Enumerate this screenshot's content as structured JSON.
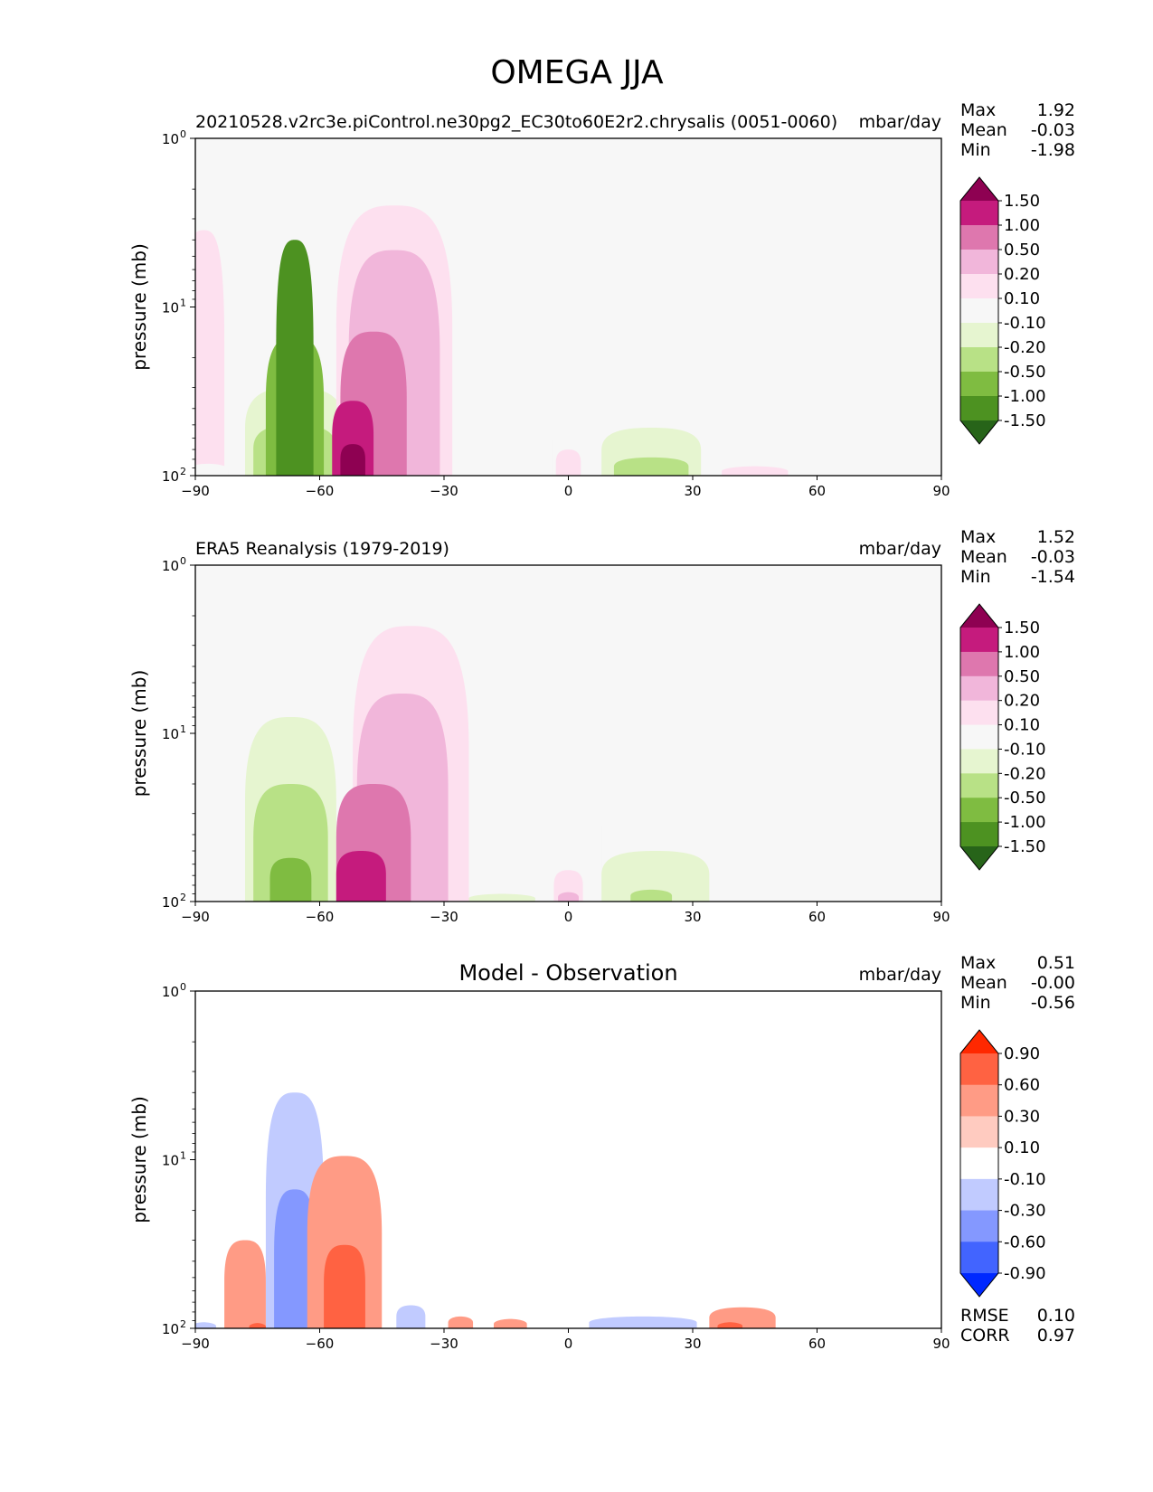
{
  "figure": {
    "title": "OMEGA JJA"
  },
  "chart_data": [
    {
      "type": "heatmap",
      "title": "20210528.v2rc3e.piControl.ne30pg2_EC30to60E2r2.chrysalis (0051-0060)",
      "units": "mbar/day",
      "ylabel": "pressure (mb)",
      "xlim": [
        -90,
        90
      ],
      "ylim": [
        100,
        1
      ],
      "yscale": "log",
      "xticks": [
        "−90",
        "−60",
        "−30",
        "0",
        "30",
        "60",
        "90"
      ],
      "yticks": [
        "10",
        "10",
        "10"
      ],
      "ytick_exp": [
        "0",
        "1",
        "2"
      ],
      "stats": [
        {
          "label": "Max",
          "value": "1.92"
        },
        {
          "label": "Mean",
          "value": "-0.03"
        },
        {
          "label": "Min",
          "value": "-1.98"
        }
      ],
      "colorbar": {
        "levels": [
          "1.50",
          "1.00",
          "0.50",
          "0.20",
          "0.10",
          "-0.10",
          "-0.20",
          "-0.50",
          "-1.00",
          "-1.50"
        ],
        "colors": [
          "#8e0152",
          "#c51b7d",
          "#de77ae",
          "#f1b6da",
          "#fde0ef",
          "#f7f7f7",
          "#e6f5d0",
          "#b8e186",
          "#7fbc41",
          "#4d9221",
          "#276419"
        ]
      },
      "features": [
        {
          "x": -66,
          "top_p": 30,
          "halfwidth": 12,
          "value": -0.2
        },
        {
          "x": -66,
          "top_p": 50,
          "halfwidth": 10,
          "value": -0.5
        },
        {
          "x": -66,
          "top_p": 15,
          "halfwidth": 7,
          "value": -1.0
        },
        {
          "x": -66,
          "top_p": 4,
          "halfwidth": 4.5,
          "value": -1.5
        },
        {
          "x": -42,
          "top_p": 2.5,
          "halfwidth": 14,
          "value": 0.1
        },
        {
          "x": -42,
          "top_p": 4.6,
          "halfwidth": 11,
          "value": 0.2
        },
        {
          "x": -47,
          "top_p": 14,
          "halfwidth": 8,
          "value": 0.5
        },
        {
          "x": -52,
          "top_p": 36,
          "halfwidth": 5,
          "value": 1.0
        },
        {
          "x": -52,
          "top_p": 65,
          "halfwidth": 3,
          "value": 1.5
        },
        {
          "x": 23,
          "top_p": 17,
          "halfwidth": 13,
          "value": -0.1
        },
        {
          "x": 20,
          "top_p": 52,
          "halfwidth": 12,
          "value": -0.2
        },
        {
          "x": 20,
          "top_p": 78,
          "halfwidth": 9,
          "value": -0.5
        },
        {
          "x": -12,
          "top_p": 40,
          "halfwidth": 8,
          "value": -0.1
        },
        {
          "x": 0,
          "top_p": 70,
          "halfwidth": 3,
          "value": 0.1
        },
        {
          "x": -88,
          "top_p": 3.5,
          "halfwidth": 5,
          "value": 0.1
        },
        {
          "x": 45,
          "top_p": 88,
          "halfwidth": 8,
          "value": 0.1
        },
        {
          "x": -87,
          "top_p": 85,
          "halfwidth": 5,
          "value": -0.1
        }
      ]
    },
    {
      "type": "heatmap",
      "title": "ERA5 Reanalysis (1979-2019)",
      "units": "mbar/day",
      "ylabel": "pressure (mb)",
      "xlim": [
        -90,
        90
      ],
      "ylim": [
        100,
        1
      ],
      "yscale": "log",
      "xticks": [
        "−90",
        "−60",
        "−30",
        "0",
        "30",
        "60",
        "90"
      ],
      "yticks": [
        "10",
        "10",
        "10"
      ],
      "ytick_exp": [
        "0",
        "1",
        "2"
      ],
      "stats": [
        {
          "label": "Max",
          "value": "1.52"
        },
        {
          "label": "Mean",
          "value": "-0.03"
        },
        {
          "label": "Min",
          "value": "-1.54"
        }
      ],
      "colorbar": {
        "levels": [
          "1.50",
          "1.00",
          "0.50",
          "0.20",
          "0.10",
          "-0.10",
          "-0.20",
          "-0.50",
          "-1.00",
          "-1.50"
        ],
        "colors": [
          "#8e0152",
          "#c51b7d",
          "#de77ae",
          "#f1b6da",
          "#fde0ef",
          "#f7f7f7",
          "#e6f5d0",
          "#b8e186",
          "#7fbc41",
          "#4d9221",
          "#276419"
        ]
      },
      "features": [
        {
          "x": -68,
          "top_p": 5,
          "halfwidth": 15,
          "value": -0.1
        },
        {
          "x": -67,
          "top_p": 8,
          "halfwidth": 11,
          "value": -0.2
        },
        {
          "x": -67,
          "top_p": 20,
          "halfwidth": 9,
          "value": -0.5
        },
        {
          "x": -67,
          "top_p": 55,
          "halfwidth": 5,
          "value": -1.0
        },
        {
          "x": -38,
          "top_p": 2.3,
          "halfwidth": 14,
          "value": 0.1
        },
        {
          "x": -40,
          "top_p": 5.8,
          "halfwidth": 11,
          "value": 0.2
        },
        {
          "x": -47,
          "top_p": 20,
          "halfwidth": 9,
          "value": 0.5
        },
        {
          "x": -50,
          "top_p": 50,
          "halfwidth": 6,
          "value": 1.0
        },
        {
          "x": 25,
          "top_p": 15,
          "halfwidth": 17,
          "value": -0.1
        },
        {
          "x": 21,
          "top_p": 50,
          "halfwidth": 13,
          "value": -0.2
        },
        {
          "x": 20,
          "top_p": 85,
          "halfwidth": 5,
          "value": -0.5
        },
        {
          "x": -10,
          "top_p": 35,
          "halfwidth": 7,
          "value": -0.1
        },
        {
          "x": -16,
          "top_p": 90,
          "halfwidth": 8,
          "value": -0.2
        },
        {
          "x": 0,
          "top_p": 65,
          "halfwidth": 3.5,
          "value": 0.1
        },
        {
          "x": 0,
          "top_p": 88,
          "halfwidth": 2.5,
          "value": 0.2
        },
        {
          "x": -86,
          "top_p": 55,
          "halfwidth": 6,
          "value": -0.1
        }
      ]
    },
    {
      "type": "heatmap",
      "title": "Model - Observation",
      "units": "mbar/day",
      "ylabel": "pressure (mb)",
      "xlim": [
        -90,
        90
      ],
      "ylim": [
        100,
        1
      ],
      "yscale": "log",
      "xticks": [
        "−90",
        "−60",
        "−30",
        "0",
        "30",
        "60",
        "90"
      ],
      "yticks": [
        "10",
        "10",
        "10"
      ],
      "ytick_exp": [
        "0",
        "1",
        "2"
      ],
      "stats": [
        {
          "label": "Max",
          "value": "0.51"
        },
        {
          "label": "Mean",
          "value": "-0.00"
        },
        {
          "label": "Min",
          "value": "-0.56"
        }
      ],
      "extra_stats": [
        {
          "label": "RMSE",
          "value": "0.10"
        },
        {
          "label": "CORR",
          "value": "0.97"
        }
      ],
      "colorbar": {
        "levels": [
          "0.90",
          "0.60",
          "0.30",
          "0.10",
          "-0.10",
          "-0.30",
          "-0.60",
          "-0.90"
        ],
        "colors": [
          "#ff2800",
          "#ff6242",
          "#ff9b85",
          "#ffcbc0",
          "#ffffff",
          "#c1cbff",
          "#8498ff",
          "#4264ff",
          "#0028ff"
        ]
      },
      "features": [
        {
          "x": -66,
          "top_p": 4,
          "halfwidth": 7,
          "value": -0.3
        },
        {
          "x": -66,
          "top_p": 15,
          "halfwidth": 5,
          "value": -0.6
        },
        {
          "x": -54,
          "top_p": 9.5,
          "halfwidth": 9,
          "value": 0.3
        },
        {
          "x": -54,
          "top_p": 32,
          "halfwidth": 5,
          "value": 0.6
        },
        {
          "x": -78,
          "top_p": 30,
          "halfwidth": 5,
          "value": 0.3
        },
        {
          "x": 42,
          "top_p": 75,
          "halfwidth": 8,
          "value": 0.3
        },
        {
          "x": 39,
          "top_p": 92,
          "halfwidth": 3,
          "value": 0.6
        },
        {
          "x": 18,
          "top_p": 85,
          "halfwidth": 13,
          "value": -0.3
        },
        {
          "x": -38,
          "top_p": 73,
          "halfwidth": 3.5,
          "value": -0.3
        },
        {
          "x": -26,
          "top_p": 85,
          "halfwidth": 3,
          "value": 0.3
        },
        {
          "x": -14,
          "top_p": 88,
          "halfwidth": 4,
          "value": 0.3
        },
        {
          "x": -75,
          "top_p": 93,
          "halfwidth": 2,
          "value": 0.6
        },
        {
          "x": -88,
          "top_p": 92,
          "halfwidth": 3,
          "value": -0.3
        }
      ]
    }
  ]
}
